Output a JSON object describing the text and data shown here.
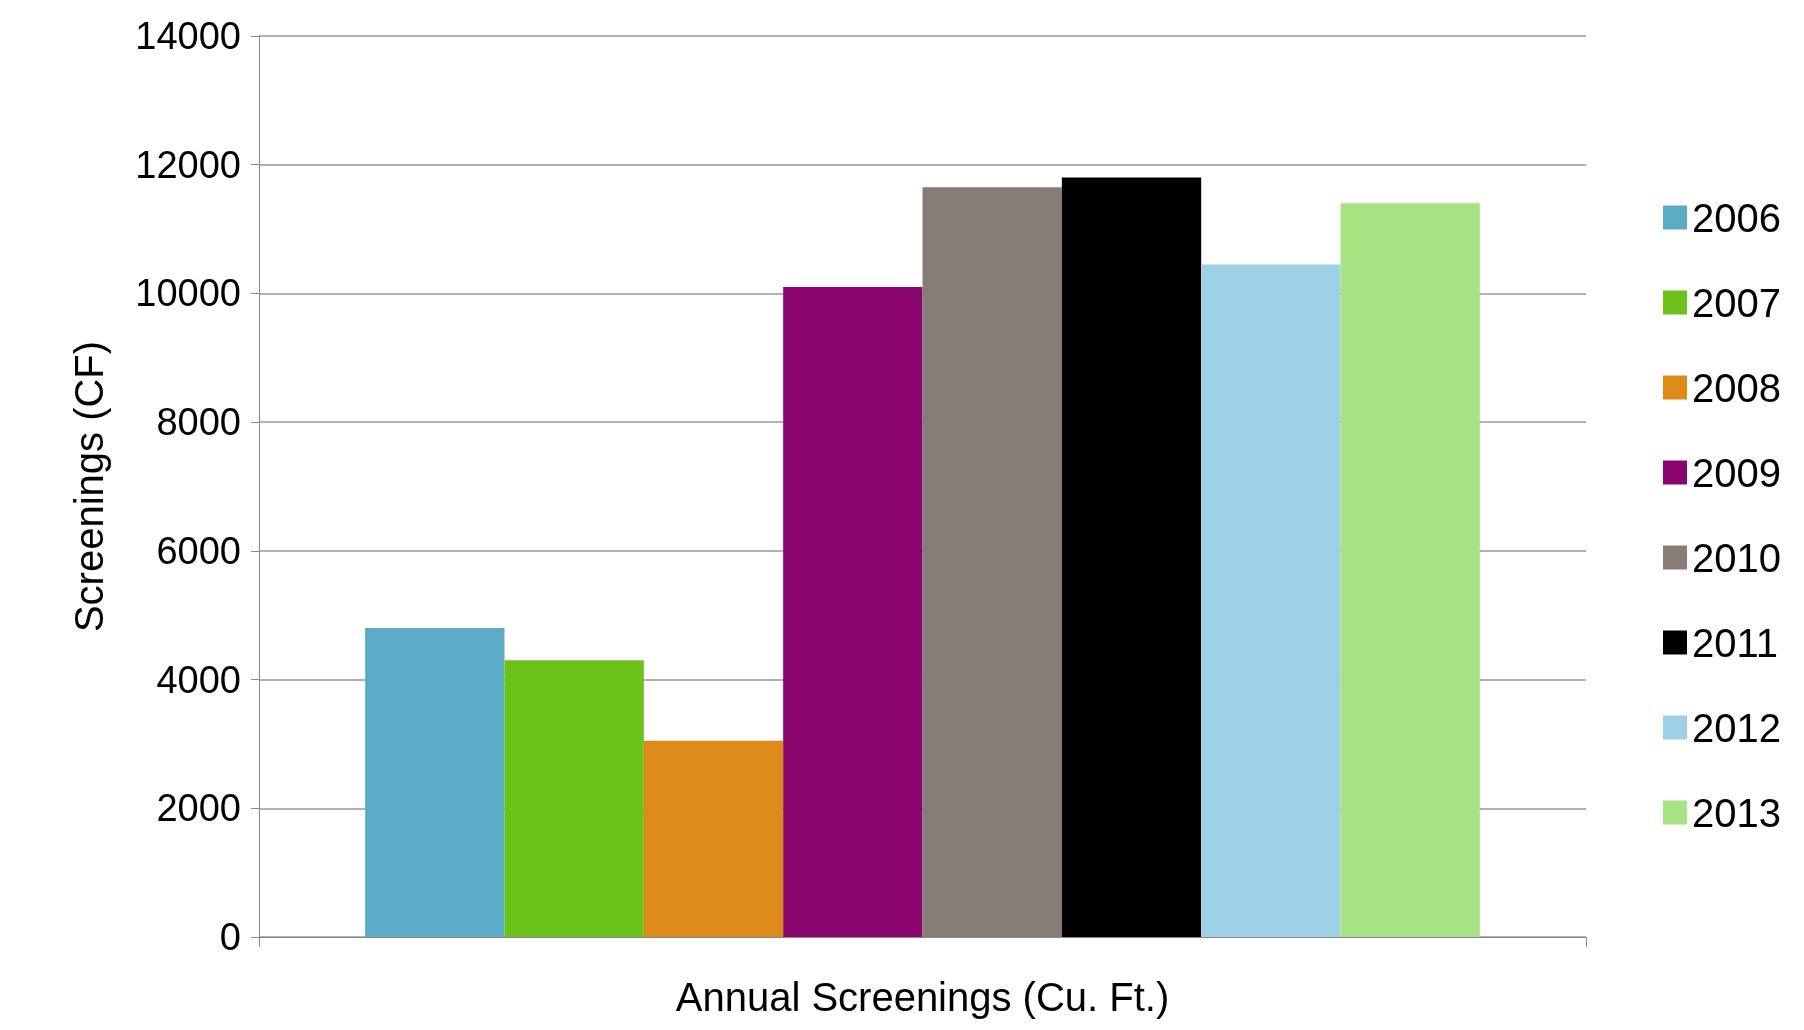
{
  "chart_data": {
    "type": "bar",
    "xlabel": "Annual Screenings (Cu. Ft.)",
    "ylabel": "Screenings (CF)",
    "categories": [
      null
    ],
    "series": [
      {
        "name": "2006",
        "color": "#5aabc6",
        "values": [
          4800
        ]
      },
      {
        "name": "2007",
        "color": "#6cc11a",
        "values": [
          4300
        ]
      },
      {
        "name": "2008",
        "color": "#de8a18",
        "values": [
          3050
        ]
      },
      {
        "name": "2009",
        "color": "#8a066e",
        "values": [
          10100
        ]
      },
      {
        "name": "2010",
        "color": "#877d76",
        "values": [
          11650
        ]
      },
      {
        "name": "2011",
        "color": "#000000",
        "values": [
          11800
        ]
      },
      {
        "name": "2012",
        "color": "#9dd2e6",
        "values": [
          10450
        ]
      },
      {
        "name": "2013",
        "color": "#a6e382",
        "values": [
          11400
        ]
      }
    ],
    "ylim": [
      0,
      14000
    ],
    "yticks": [
      0,
      2000,
      4000,
      6000,
      8000,
      10000,
      12000,
      14000
    ],
    "grid": "y",
    "legend": "right"
  }
}
